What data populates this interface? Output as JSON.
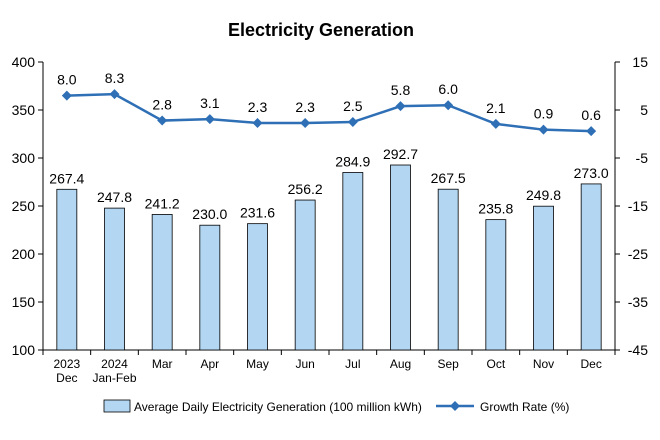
{
  "chart_data": {
    "type": "bar",
    "title": "Electricity Generation",
    "categories": [
      [
        "2023",
        "Dec"
      ],
      [
        "2024",
        "Jan-Feb"
      ],
      [
        "Mar"
      ],
      [
        "Apr"
      ],
      [
        "May"
      ],
      [
        "Jun"
      ],
      [
        "Jul"
      ],
      [
        "Aug"
      ],
      [
        "Sep"
      ],
      [
        "Oct"
      ],
      [
        "Nov"
      ],
      [
        "Dec"
      ]
    ],
    "series": [
      {
        "name": "Average Daily Electricity Generation (100 million kWh)",
        "type": "bar",
        "axis": "left",
        "color": "#b3d7f3",
        "values": [
          267.4,
          247.8,
          241.2,
          230.0,
          231.6,
          256.2,
          284.9,
          292.7,
          267.5,
          235.8,
          249.8,
          273.0
        ],
        "labels": [
          "267.4",
          "247.8",
          "241.2",
          "230.0",
          "231.6",
          "256.2",
          "284.9",
          "292.7",
          "267.5",
          "235.8",
          "249.8",
          "273.0"
        ]
      },
      {
        "name": "Growth Rate (%)",
        "type": "line",
        "axis": "right",
        "color": "#2e6fb5",
        "values": [
          8.0,
          8.3,
          2.8,
          3.1,
          2.3,
          2.3,
          2.5,
          5.8,
          6.0,
          2.1,
          0.9,
          0.6
        ],
        "labels": [
          "8.0",
          "8.3",
          "2.8",
          "3.1",
          "2.3",
          "2.3",
          "2.5",
          "5.8",
          "6.0",
          "2.1",
          "0.9",
          "0.6"
        ]
      }
    ],
    "y_left": {
      "min": 100,
      "max": 400,
      "step": 50,
      "ticks": [
        "100",
        "150",
        "200",
        "250",
        "300",
        "350",
        "400"
      ]
    },
    "y_right": {
      "min": -45,
      "max": 15,
      "step": 10,
      "ticks": [
        "-45",
        "-35",
        "-25",
        "-15",
        "-5",
        "5",
        "15"
      ]
    },
    "grid": false,
    "legend_position": "bottom"
  }
}
